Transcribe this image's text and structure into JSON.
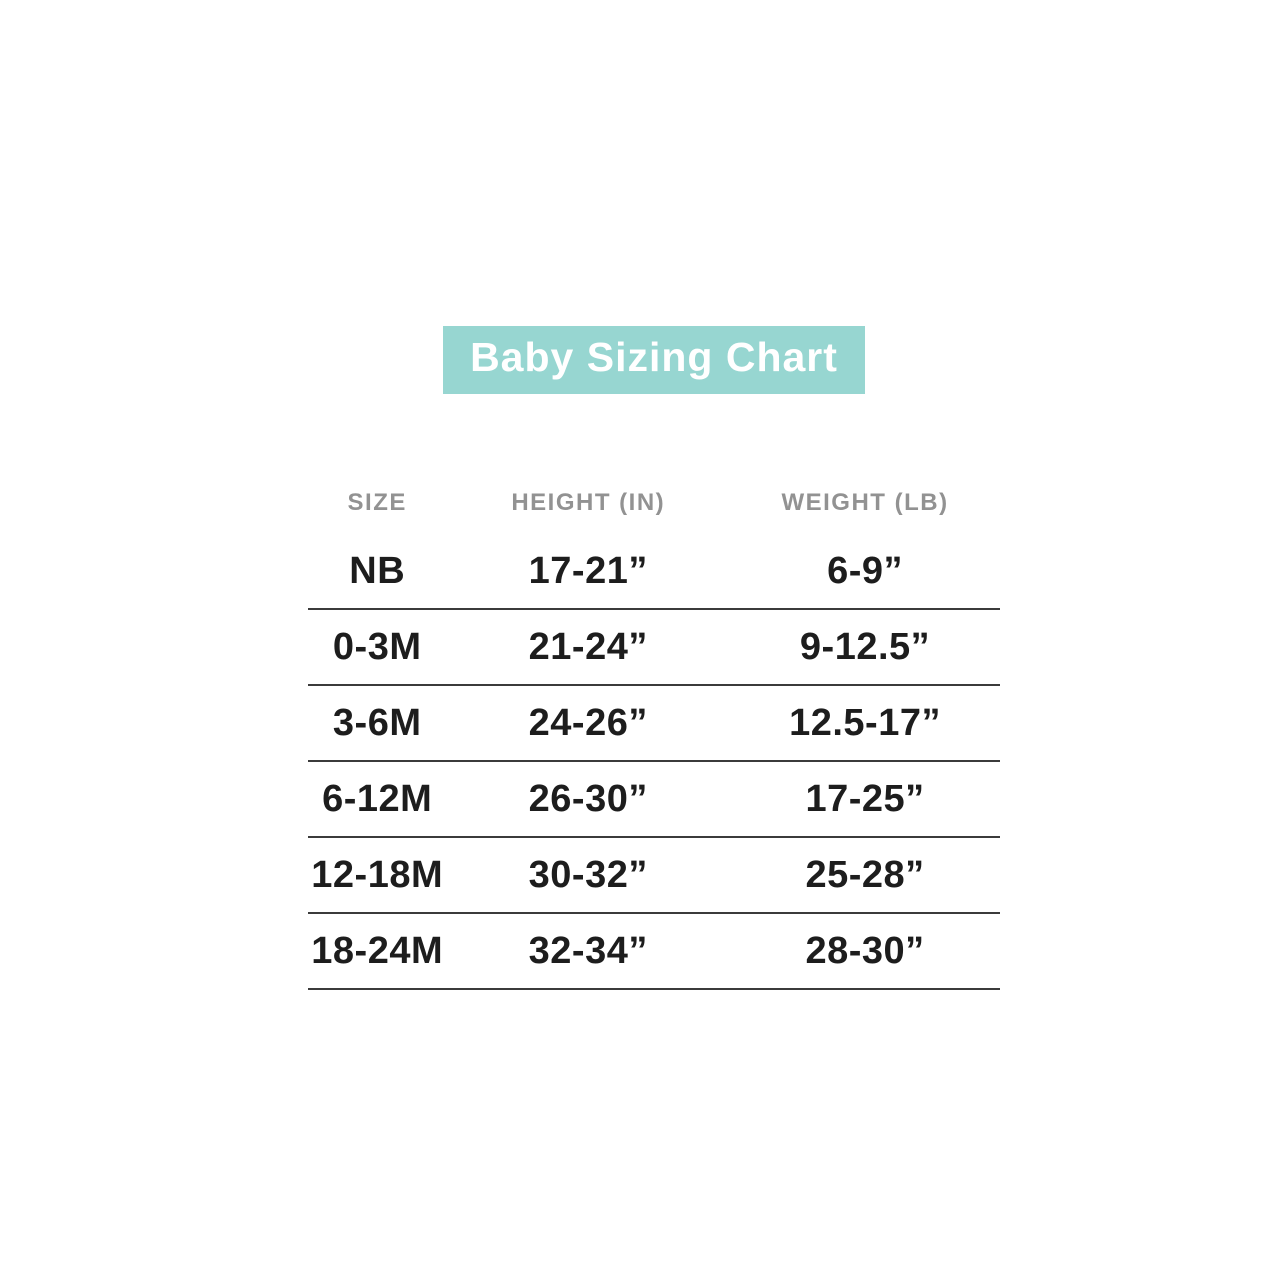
{
  "chart_data": {
    "type": "table",
    "title": "Baby Sizing Chart",
    "columns": [
      "SIZE",
      "HEIGHT (IN)",
      "WEIGHT (LB)"
    ],
    "rows": [
      [
        "NB",
        "17-21”",
        "6-9”"
      ],
      [
        "0-3M",
        "21-24”",
        "9-12.5”"
      ],
      [
        "3-6M",
        "24-26”",
        "12.5-17”"
      ],
      [
        "6-12M",
        "26-30”",
        "17-25”"
      ],
      [
        "12-18M",
        "30-32”",
        "25-28”"
      ],
      [
        "18-24M",
        "32-34”",
        "28-30”"
      ]
    ],
    "layout": {
      "legend": "none",
      "grid": "horizontal-dividers-below-data-rows"
    }
  },
  "colors": {
    "banner_background": "#97D6D1",
    "banner_text": "#FFFFFF",
    "column_header_text": "#929292",
    "cell_text": "#1D1D1D",
    "divider_line": "#3B3B3B",
    "page_background": "#FFFFFF"
  }
}
